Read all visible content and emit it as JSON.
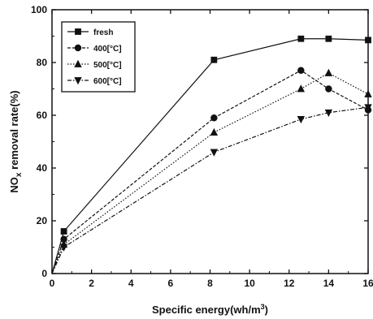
{
  "chart_data": {
    "type": "line",
    "title": "",
    "xlabel": "Specific energy(wh/m³)",
    "ylabel": "NOₓ removal rate(%)",
    "xlim": [
      0,
      16
    ],
    "ylim": [
      0,
      100
    ],
    "xticks": [
      "0",
      "2",
      "4",
      "6",
      "8",
      "10",
      "12",
      "14",
      "16"
    ],
    "yticks": [
      "0",
      "20",
      "40",
      "60",
      "80",
      "100"
    ],
    "grid": false,
    "legend_position": "top-left",
    "series": [
      {
        "name": "fresh",
        "marker": "square",
        "dash": "solid",
        "x": [
          0,
          0.6,
          8.2,
          12.6,
          14,
          16
        ],
        "y": [
          0,
          16,
          81,
          89,
          89,
          88.5
        ]
      },
      {
        "name": "400[°C]",
        "marker": "circle",
        "dash": "dash",
        "x": [
          0,
          0.6,
          8.2,
          12.6,
          14,
          16
        ],
        "y": [
          0,
          13,
          59,
          77,
          70,
          62
        ]
      },
      {
        "name": "500[°C]",
        "marker": "triangle-up",
        "dash": "dot",
        "x": [
          0,
          0.6,
          8.2,
          12.6,
          14,
          16
        ],
        "y": [
          0,
          11,
          53.5,
          70,
          76,
          68
        ]
      },
      {
        "name": "600[°C]",
        "marker": "triangle-down",
        "dash": "dashdot",
        "x": [
          0,
          0.6,
          8.2,
          12.6,
          14,
          16
        ],
        "y": [
          0,
          10,
          46,
          58.5,
          61,
          63
        ]
      }
    ]
  }
}
